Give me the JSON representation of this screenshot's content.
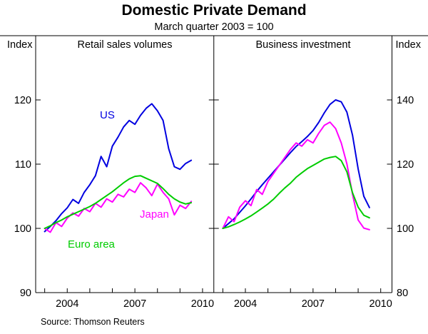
{
  "title": "Domestic Private Demand",
  "subtitle": "March quarter 2003 = 100",
  "axis_label_left": "Index",
  "axis_label_right": "Index",
  "source": "Source: Thomson Reuters",
  "frame_color": "#000000",
  "chart_data": [
    {
      "type": "line",
      "title": "Retail sales volumes",
      "ylabel": "Index",
      "ylim": [
        90,
        130
      ],
      "yticks": [
        90,
        100,
        110,
        120
      ],
      "xlim": [
        2002.6,
        2010.5
      ],
      "xticks": [
        2003,
        2004,
        2005,
        2006,
        2007,
        2008,
        2009,
        2010
      ],
      "xtick_labels": [
        2004,
        2007,
        2010
      ],
      "x_start": 2003.0,
      "x_step": 0.25,
      "grid": false,
      "legend": "in-plot annotations",
      "series": [
        {
          "name": "US",
          "color": "#0000e0",
          "values": [
            99.5,
            100.3,
            101.2,
            102.3,
            103.2,
            104.5,
            103.9,
            105.6,
            106.8,
            108.2,
            111.2,
            109.6,
            112.8,
            114.2,
            115.8,
            116.8,
            116.2,
            117.6,
            118.7,
            119.4,
            118.3,
            116.8,
            112.4,
            109.6,
            109.2,
            110.1,
            110.6
          ]
        },
        {
          "name": "Japan",
          "color": "#ff00ff",
          "values": [
            100.0,
            99.4,
            100.9,
            100.3,
            101.6,
            102.4,
            101.9,
            103.1,
            102.6,
            103.9,
            103.3,
            104.6,
            104.1,
            105.3,
            104.9,
            106.1,
            105.6,
            107.1,
            106.3,
            105.1,
            106.9,
            105.6,
            104.6,
            102.1,
            103.6,
            103.1,
            104.2
          ]
        },
        {
          "name": "Euro area",
          "color": "#00cc00",
          "values": [
            100.0,
            100.4,
            100.9,
            101.3,
            101.8,
            102.2,
            102.6,
            103.0,
            103.4,
            103.9,
            104.5,
            105.1,
            105.7,
            106.4,
            107.1,
            107.7,
            108.1,
            108.2,
            107.8,
            107.4,
            107.0,
            106.2,
            105.3,
            104.6,
            104.1,
            103.8,
            104.0
          ]
        }
      ]
    },
    {
      "type": "line",
      "title": "Business investment",
      "ylabel": "Index",
      "ylim": [
        80,
        160
      ],
      "yticks": [
        80,
        100,
        120,
        140
      ],
      "xlim": [
        2002.6,
        2010.5
      ],
      "xticks": [
        2003,
        2004,
        2005,
        2006,
        2007,
        2008,
        2009,
        2010
      ],
      "xtick_labels": [
        2004,
        2007,
        2010
      ],
      "x_start": 2003.0,
      "x_step": 0.25,
      "grid": false,
      "legend": "shared with left panel",
      "series": [
        {
          "name": "US",
          "color": "#0000e0",
          "values": [
            100.0,
            101.5,
            103.0,
            105.0,
            107.0,
            109.2,
            111.5,
            113.6,
            115.6,
            117.6,
            119.6,
            121.6,
            123.6,
            125.5,
            127.0,
            128.6,
            130.5,
            133.0,
            136.0,
            138.6,
            140.0,
            139.4,
            136.2,
            129.0,
            118.5,
            110.0,
            106.5
          ]
        },
        {
          "name": "Japan",
          "color": "#ff00ff",
          "values": [
            100.0,
            103.6,
            102.1,
            106.6,
            108.6,
            107.1,
            112.1,
            110.6,
            114.6,
            117.1,
            119.6,
            122.1,
            124.6,
            126.6,
            125.6,
            127.6,
            126.6,
            129.6,
            132.1,
            133.1,
            131.1,
            126.6,
            120.1,
            110.6,
            102.6,
            100.1,
            99.6
          ]
        },
        {
          "name": "Euro area",
          "color": "#00cc00",
          "values": [
            100.0,
            100.5,
            101.2,
            102.0,
            102.9,
            103.9,
            105.1,
            106.3,
            107.6,
            109.1,
            110.9,
            112.6,
            114.1,
            115.9,
            117.3,
            118.6,
            119.6,
            120.6,
            121.6,
            122.1,
            122.4,
            121.1,
            117.6,
            111.1,
            106.6,
            104.1,
            103.3
          ]
        }
      ]
    }
  ]
}
